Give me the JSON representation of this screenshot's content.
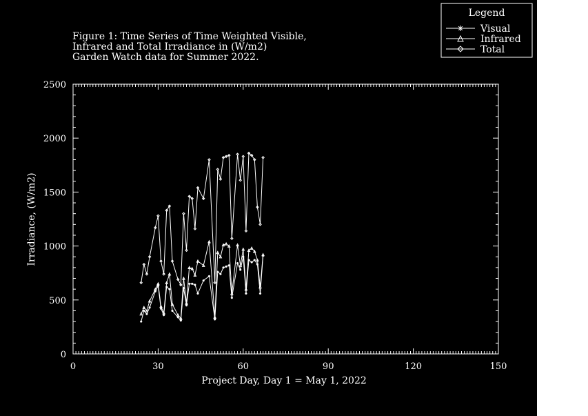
{
  "chart_data": {
    "type": "line",
    "title_lines": [
      "Figure 1: Time Series of Time Weighted Visible,",
      "Infrared and Total Irradiance in (W/m2)",
      "Garden Watch data for Summer 2022."
    ],
    "xlabel": "Project Day, Day 1 = May 1, 2022",
    "ylabel": "Irradiance, (W/m2)",
    "xlim": [
      0,
      150
    ],
    "ylim": [
      0,
      2500
    ],
    "xticks": [
      0,
      30,
      60,
      90,
      120,
      150
    ],
    "yticks": [
      0,
      500,
      1000,
      1500,
      2000,
      2500
    ],
    "legend": {
      "title": "Legend",
      "position": "top-right",
      "entries": [
        {
          "label": "Visual",
          "marker": "asterisk"
        },
        {
          "label": "Infrared",
          "marker": "triangle"
        },
        {
          "label": "Total",
          "marker": "diamond"
        }
      ]
    },
    "series": [
      {
        "name": "Visual",
        "x": [
          24,
          25,
          26,
          27,
          29,
          30,
          31,
          32,
          33,
          34,
          35,
          37,
          38,
          39,
          40,
          41,
          42,
          43,
          44,
          46,
          48,
          50,
          51,
          52,
          53,
          54,
          55,
          56,
          58,
          59,
          60,
          61,
          62,
          63,
          64,
          65,
          66,
          67
        ],
        "y": [
          300,
          400,
          370,
          430,
          580,
          630,
          420,
          360,
          620,
          600,
          400,
          340,
          310,
          610,
          450,
          650,
          650,
          640,
          560,
          680,
          720,
          320,
          760,
          740,
          800,
          810,
          820,
          520,
          840,
          780,
          900,
          560,
          870,
          850,
          870,
          830,
          560,
          910
        ]
      },
      {
        "name": "Infrared",
        "x": [
          24,
          25,
          26,
          27,
          29,
          30,
          31,
          32,
          33,
          34,
          35,
          37,
          38,
          39,
          40,
          41,
          42,
          43,
          44,
          46,
          48,
          50,
          51,
          52,
          53,
          54,
          55,
          56,
          58,
          59,
          60,
          61,
          62,
          63,
          64,
          65,
          66,
          67
        ],
        "y": [
          370,
          430,
          400,
          490,
          600,
          650,
          440,
          380,
          660,
          740,
          460,
          360,
          330,
          700,
          470,
          800,
          790,
          730,
          860,
          820,
          1040,
          340,
          940,
          900,
          1010,
          1020,
          1000,
          560,
          1010,
          820,
          970,
          600,
          960,
          980,
          950,
          870,
          620,
          920
        ]
      },
      {
        "name": "Total",
        "x": [
          24,
          25,
          26,
          27,
          29,
          30,
          31,
          32,
          33,
          34,
          35,
          37,
          38,
          39,
          40,
          41,
          42,
          43,
          44,
          46,
          48,
          50,
          51,
          52,
          53,
          54,
          55,
          56,
          58,
          59,
          60,
          61,
          62,
          63,
          64,
          65,
          66,
          67
        ],
        "y": [
          660,
          830,
          740,
          900,
          1170,
          1280,
          860,
          740,
          1330,
          1370,
          860,
          690,
          640,
          1300,
          960,
          1460,
          1440,
          1160,
          1540,
          1440,
          1800,
          660,
          1710,
          1620,
          1820,
          1830,
          1840,
          1070,
          1850,
          1610,
          1830,
          1140,
          1860,
          1840,
          1800,
          1360,
          1200,
          1820
        ]
      }
    ]
  }
}
